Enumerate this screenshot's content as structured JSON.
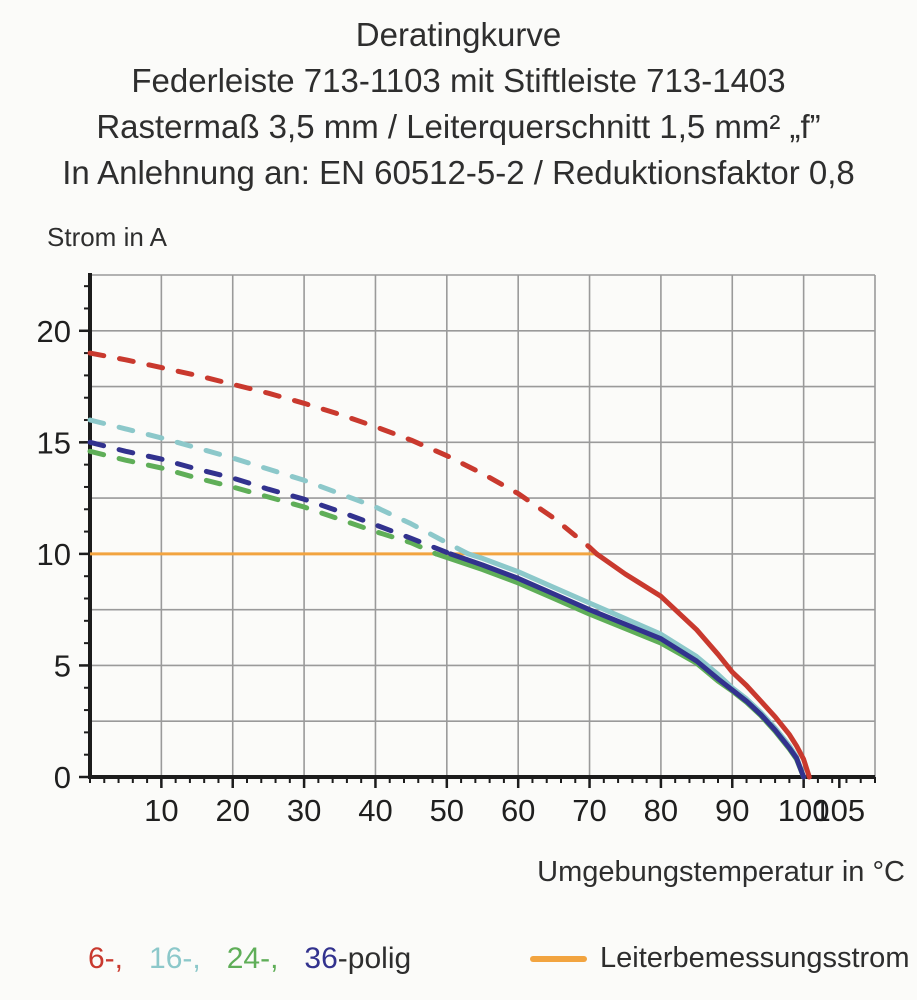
{
  "title": {
    "lines": [
      "Deratingkurve",
      "Federleiste 713-1103 mit Stiftleiste 713-1403",
      "Rastermaß 3,5 mm / Leiterquerschnitt 1,5 mm² „f”",
      "In Anlehnung an: EN 60512-5-2 / Reduktionsfaktor 0,8"
    ]
  },
  "chart_data": {
    "type": "line",
    "title": "Deratingkurve",
    "ylabel": "Strom in A",
    "xlabel": "Umgebungstemperatur in °C",
    "x_range": [
      0,
      110
    ],
    "y_range": [
      0,
      22.5
    ],
    "x_grid_step": 10,
    "y_grid_step": 2.5,
    "x_minor_step": 2,
    "y_minor_step": 1,
    "x_major_ticks": [
      10,
      20,
      30,
      40,
      50,
      60,
      70,
      80,
      90,
      100,
      105
    ],
    "y_major_ticks": [
      0,
      5,
      10,
      15,
      20
    ],
    "grid": true,
    "legend_position": "bottom",
    "colors": {
      "grid": "#9a9a9a",
      "axis": "#1c1c1c"
    },
    "reference_line": {
      "name": "Leiterbemessungsstrom",
      "y": 10,
      "x_start": 0,
      "x_end": 71,
      "color": "#f2a440"
    },
    "series": [
      {
        "name": "6-polig",
        "color": "#c9392e",
        "dash_until_x": 71,
        "dashed_points": [
          [
            0,
            19.0
          ],
          [
            5,
            18.7
          ],
          [
            10,
            18.35
          ],
          [
            15,
            18.0
          ],
          [
            20,
            17.6
          ],
          [
            25,
            17.2
          ],
          [
            30,
            16.75
          ],
          [
            35,
            16.25
          ],
          [
            40,
            15.7
          ],
          [
            45,
            15.1
          ],
          [
            50,
            14.4
          ],
          [
            55,
            13.6
          ],
          [
            60,
            12.7
          ],
          [
            65,
            11.6
          ],
          [
            70,
            10.3
          ],
          [
            71,
            10.0
          ]
        ],
        "solid_points": [
          [
            71,
            10.0
          ],
          [
            75,
            9.1
          ],
          [
            80,
            8.1
          ],
          [
            85,
            6.6
          ],
          [
            88,
            5.5
          ],
          [
            90,
            4.7
          ],
          [
            92,
            4.1
          ],
          [
            94,
            3.4
          ],
          [
            96,
            2.7
          ],
          [
            98,
            1.9
          ],
          [
            99,
            1.4
          ],
          [
            100,
            0.8
          ],
          [
            100.8,
            0
          ]
        ]
      },
      {
        "name": "16-polig",
        "color": "#8cc8ca",
        "dash_until_x": 53,
        "dashed_points": [
          [
            0,
            16.0
          ],
          [
            5,
            15.6
          ],
          [
            10,
            15.2
          ],
          [
            15,
            14.75
          ],
          [
            20,
            14.3
          ],
          [
            25,
            13.8
          ],
          [
            30,
            13.3
          ],
          [
            35,
            12.7
          ],
          [
            40,
            12.1
          ],
          [
            45,
            11.35
          ],
          [
            50,
            10.5
          ],
          [
            53,
            10.0
          ]
        ],
        "solid_points": [
          [
            53,
            10.0
          ],
          [
            55,
            9.8
          ],
          [
            60,
            9.2
          ],
          [
            65,
            8.5
          ],
          [
            70,
            7.8
          ],
          [
            75,
            7.1
          ],
          [
            80,
            6.4
          ],
          [
            85,
            5.4
          ],
          [
            88,
            4.6
          ],
          [
            90,
            4.0
          ],
          [
            92,
            3.5
          ],
          [
            94,
            2.9
          ],
          [
            96,
            2.2
          ],
          [
            98,
            1.4
          ],
          [
            99,
            0.9
          ],
          [
            100,
            0
          ]
        ]
      },
      {
        "name": "24-polig",
        "color": "#5fae58",
        "dash_until_x": 48.5,
        "dashed_points": [
          [
            0,
            14.6
          ],
          [
            5,
            14.2
          ],
          [
            10,
            13.85
          ],
          [
            15,
            13.4
          ],
          [
            20,
            13.0
          ],
          [
            25,
            12.55
          ],
          [
            30,
            12.1
          ],
          [
            35,
            11.55
          ],
          [
            40,
            11.0
          ],
          [
            45,
            10.5
          ],
          [
            48.5,
            10.0
          ]
        ],
        "solid_points": [
          [
            48.5,
            10.0
          ],
          [
            55,
            9.3
          ],
          [
            60,
            8.7
          ],
          [
            65,
            8.0
          ],
          [
            70,
            7.3
          ],
          [
            75,
            6.65
          ],
          [
            80,
            6.0
          ],
          [
            85,
            5.1
          ],
          [
            88,
            4.3
          ],
          [
            90,
            3.85
          ],
          [
            92,
            3.35
          ],
          [
            94,
            2.75
          ],
          [
            96,
            2.05
          ],
          [
            98,
            1.25
          ],
          [
            99,
            0.8
          ],
          [
            100,
            0
          ]
        ]
      },
      {
        "name": "36-polig",
        "color": "#32328e",
        "dash_until_x": 50.5,
        "dashed_points": [
          [
            0,
            15.0
          ],
          [
            5,
            14.6
          ],
          [
            10,
            14.25
          ],
          [
            15,
            13.8
          ],
          [
            20,
            13.4
          ],
          [
            25,
            12.9
          ],
          [
            30,
            12.45
          ],
          [
            35,
            11.9
          ],
          [
            40,
            11.3
          ],
          [
            45,
            10.7
          ],
          [
            50.5,
            10.0
          ]
        ],
        "solid_points": [
          [
            50.5,
            10.0
          ],
          [
            55,
            9.5
          ],
          [
            60,
            8.9
          ],
          [
            65,
            8.2
          ],
          [
            70,
            7.5
          ],
          [
            75,
            6.85
          ],
          [
            80,
            6.2
          ],
          [
            85,
            5.2
          ],
          [
            88,
            4.4
          ],
          [
            90,
            3.9
          ],
          [
            92,
            3.4
          ],
          [
            94,
            2.8
          ],
          [
            96,
            2.1
          ],
          [
            98,
            1.3
          ],
          [
            99,
            0.85
          ],
          [
            100,
            0
          ]
        ]
      }
    ]
  },
  "legend": {
    "items": [
      {
        "text": "6-,",
        "color": "#c9392e"
      },
      {
        "text": "16-,",
        "color": "#8cc8ca"
      },
      {
        "text": "24-,",
        "color": "#5fae58"
      },
      {
        "text": "36",
        "color": "#32328e"
      }
    ],
    "suffix": "-polig",
    "reference_label": "Leiterbemessungsstrom"
  }
}
